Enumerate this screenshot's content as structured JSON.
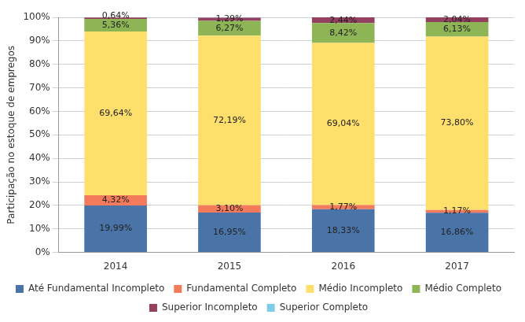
{
  "chart_data": {
    "type": "bar",
    "stacked": true,
    "grid": true,
    "legend": "bottom",
    "data_labels": true,
    "y_label": "Participação no estoque de empregos",
    "categories": [
      "2014",
      "2015",
      "2016",
      "2017"
    ],
    "ylim": [
      0,
      100
    ],
    "yticks": [
      {
        "value": 0,
        "label": "0%"
      },
      {
        "value": 10,
        "label": "10%"
      },
      {
        "value": 20,
        "label": "20%"
      },
      {
        "value": 30,
        "label": "30%"
      },
      {
        "value": 40,
        "label": "40%"
      },
      {
        "value": 50,
        "label": "50%"
      },
      {
        "value": 60,
        "label": "60%"
      },
      {
        "value": 70,
        "label": "70%"
      },
      {
        "value": 80,
        "label": "80%"
      },
      {
        "value": 90,
        "label": "90%"
      },
      {
        "value": 100,
        "label": "100%"
      }
    ],
    "series": [
      {
        "name": "Até Fundamental Incompleto",
        "color": "#4a74a8",
        "values": [
          19.99,
          16.95,
          18.33,
          16.86
        ],
        "value_labels": [
          "19,99%",
          "16,95%",
          "18,33%",
          "16,86%"
        ]
      },
      {
        "name": "Fundamental Completo",
        "color": "#f47a5c",
        "values": [
          4.32,
          3.1,
          1.77,
          1.17
        ],
        "value_labels": [
          "4,32%",
          "3,10%",
          "1,77%",
          "1,17%"
        ]
      },
      {
        "name": "Médio Incompleto",
        "color": "#ffdf6b",
        "values": [
          69.64,
          72.19,
          69.04,
          73.8
        ],
        "value_labels": [
          "69,64%",
          "72,19%",
          "69,04%",
          "73,80%"
        ]
      },
      {
        "name": "Médio Completo",
        "color": "#8db556",
        "values": [
          5.36,
          6.27,
          8.42,
          6.13
        ],
        "value_labels": [
          "5,36%",
          "6,27%",
          "8,42%",
          "6,13%"
        ]
      },
      {
        "name": "Superior Incompleto",
        "color": "#944060",
        "values": [
          0.64,
          1.29,
          2.44,
          2.04
        ],
        "value_labels": [
          "0,64%",
          "1,29%",
          "2,44%",
          "2,04%"
        ]
      },
      {
        "name": "Superior Completo",
        "color": "#80cbe8",
        "values": [
          0.05,
          0.2,
          0,
          0
        ],
        "value_labels": [
          null,
          null,
          null,
          null
        ]
      }
    ]
  }
}
